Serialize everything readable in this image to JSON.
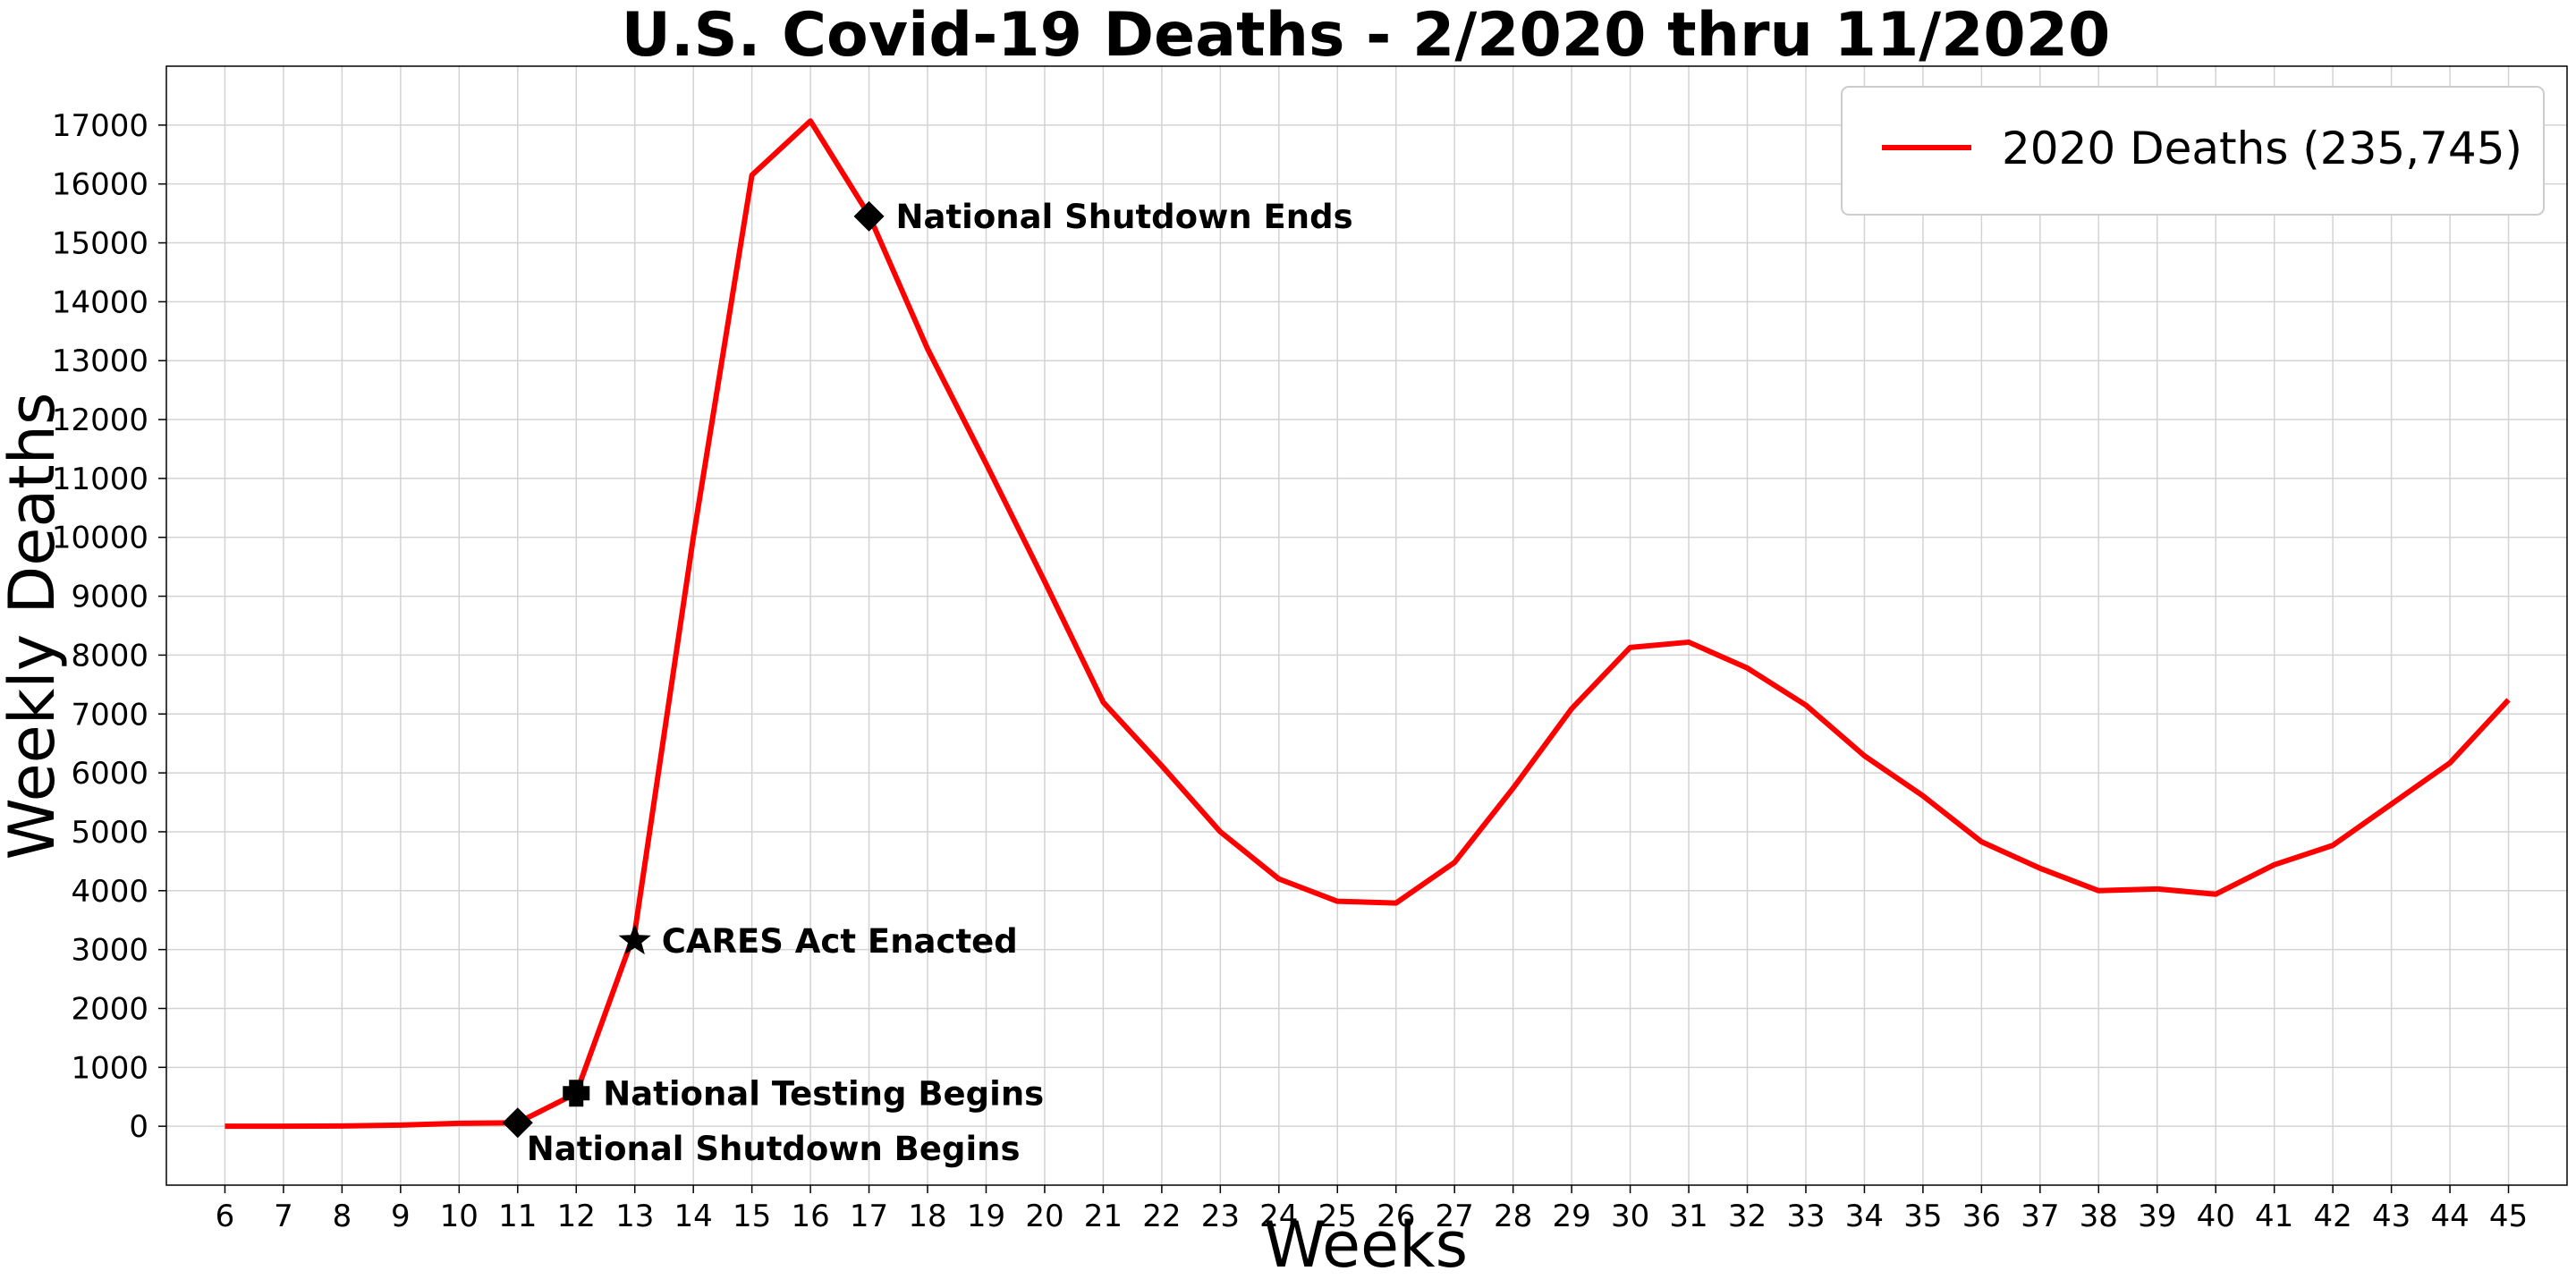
{
  "chart_data": {
    "type": "line",
    "title": "U.S. Covid-19 Deaths - 2/2020 thru 11/2020",
    "xlabel": "Weeks",
    "ylabel": "Weekly Deaths",
    "xlim": [
      5,
      46
    ],
    "ylim": [
      -1000,
      18000
    ],
    "grid": true,
    "legend_position": "top-right",
    "x_ticks": [
      6,
      7,
      8,
      9,
      10,
      11,
      12,
      13,
      14,
      15,
      16,
      17,
      18,
      19,
      20,
      21,
      22,
      23,
      24,
      25,
      26,
      27,
      28,
      29,
      30,
      31,
      32,
      33,
      34,
      35,
      36,
      37,
      38,
      39,
      40,
      41,
      42,
      43,
      44,
      45
    ],
    "y_ticks": [
      0,
      1000,
      2000,
      3000,
      4000,
      5000,
      6000,
      7000,
      8000,
      9000,
      10000,
      11000,
      12000,
      13000,
      14000,
      15000,
      16000,
      17000
    ],
    "series": [
      {
        "name": "2020 Deaths (235,745)",
        "color": "#ff0000",
        "x": [
          6,
          7,
          8,
          9,
          10,
          11,
          12,
          13,
          14,
          15,
          16,
          17,
          18,
          19,
          20,
          21,
          22,
          23,
          24,
          25,
          26,
          27,
          28,
          29,
          30,
          31,
          32,
          33,
          34,
          35,
          36,
          37,
          38,
          39,
          40,
          41,
          42,
          43,
          44,
          45
        ],
        "y": [
          0,
          0,
          5,
          20,
          50,
          60,
          560,
          3300,
          10000,
          16150,
          17070,
          15470,
          13200,
          11250,
          9250,
          7200,
          6120,
          5000,
          4200,
          3820,
          3790,
          4480,
          5740,
          7090,
          8130,
          8220,
          7780,
          7150,
          6290,
          5610,
          4830,
          4380,
          4000,
          4030,
          3940,
          4440,
          4770,
          5470,
          6170,
          7240
        ]
      }
    ],
    "annotations": [
      {
        "label": "National Shutdown Begins",
        "x": 11,
        "y": 60,
        "marker": "diamond",
        "label_side": "below-right"
      },
      {
        "label": "National Testing Begins",
        "x": 12,
        "y": 560,
        "marker": "plus",
        "label_side": "right"
      },
      {
        "label": "CARES Act Enacted",
        "x": 13,
        "y": 3150,
        "marker": "star",
        "label_side": "right"
      },
      {
        "label": "National Shutdown Ends",
        "x": 17,
        "y": 15450,
        "marker": "diamond",
        "label_side": "right"
      }
    ]
  }
}
